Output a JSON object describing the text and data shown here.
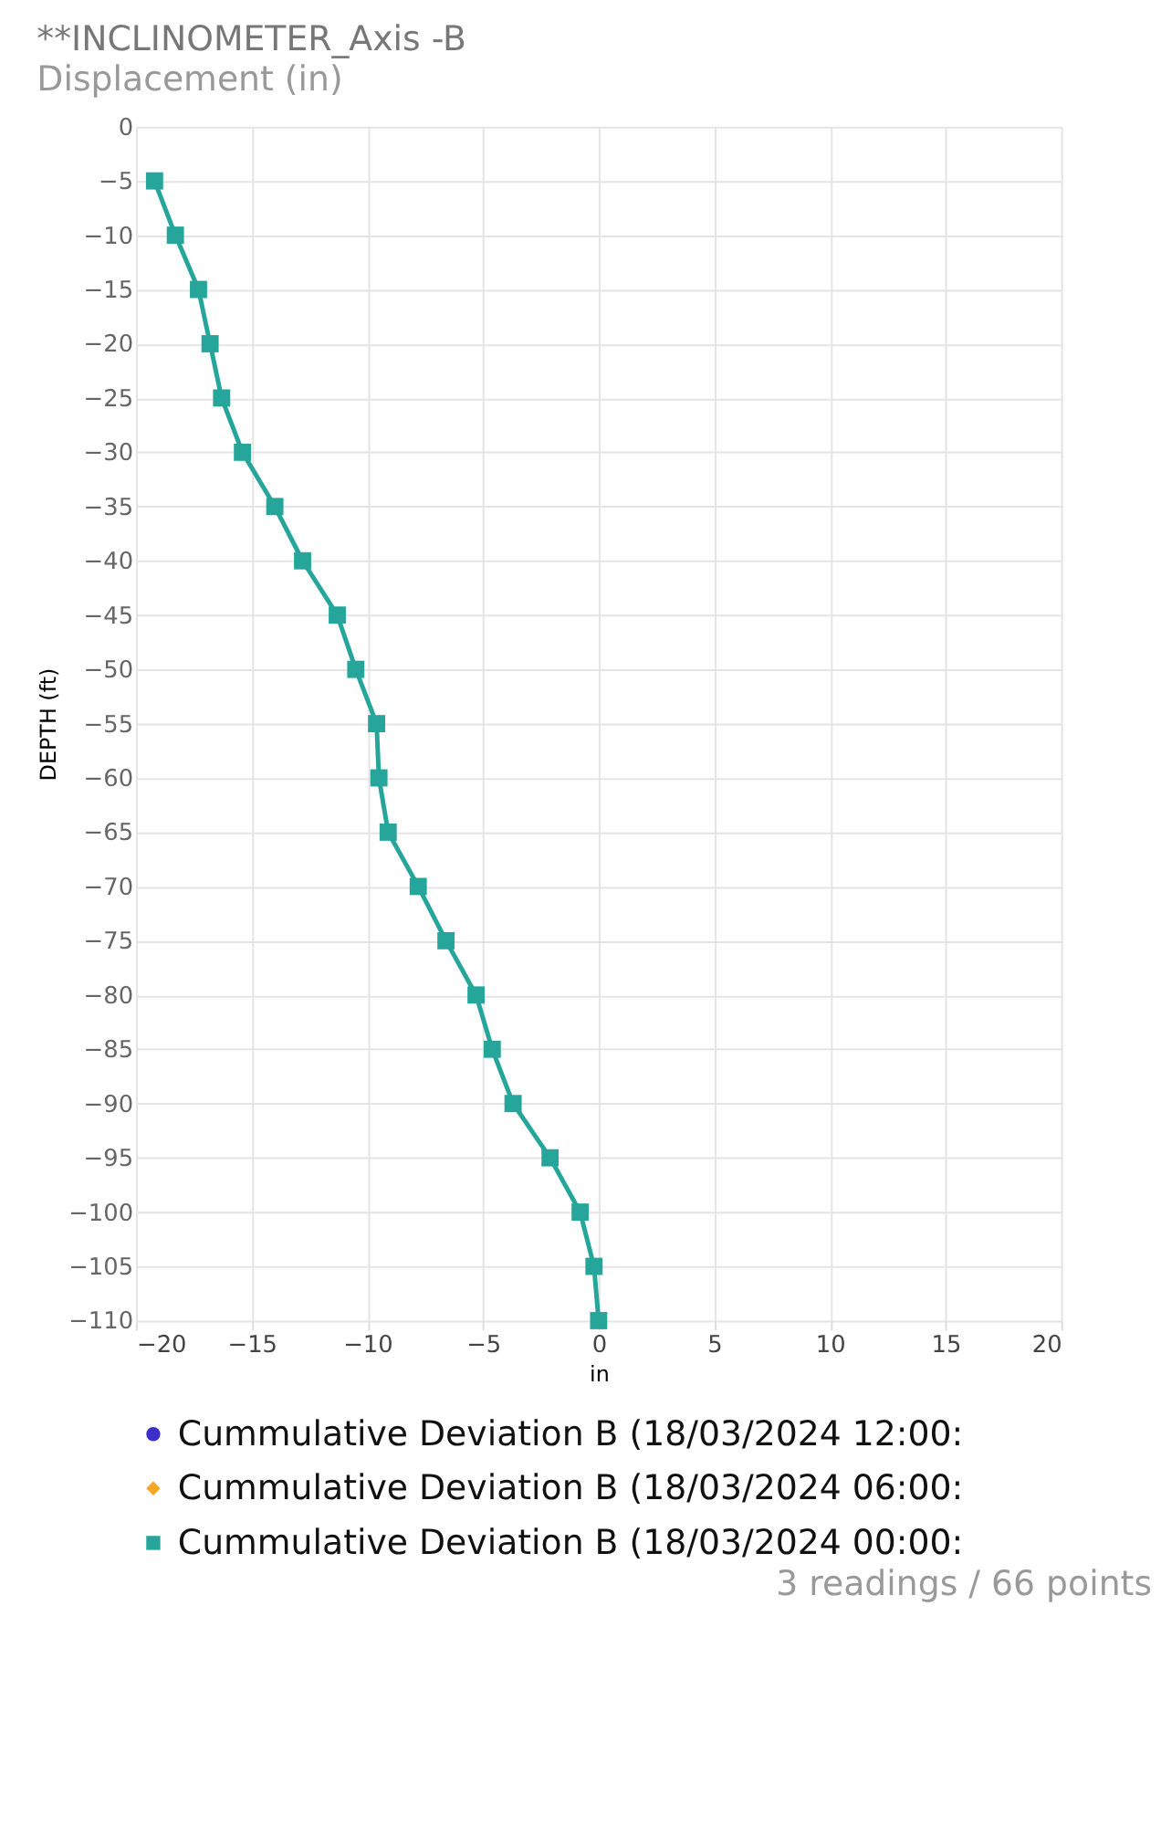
{
  "chart_data": {
    "type": "line",
    "title": "**INCLINOMETER_Axis -B",
    "subtitle": "Displacement (in)",
    "xlabel": "in",
    "ylabel": "DEPTH (ft)",
    "annotations": [
      "3 readings / 66 points"
    ],
    "x": [
      -19.2,
      -18.3,
      -17.3,
      -16.8,
      -16.3,
      -15.4,
      -14.0,
      -12.8,
      -11.3,
      -10.5,
      -9.6,
      -9.5,
      -9.1,
      -7.8,
      -6.6,
      -5.3,
      -4.6,
      -3.7,
      -2.1,
      -0.8,
      -0.2,
      0.0
    ],
    "series": [
      {
        "name": "Cummulative Deviation B (18/03/2024 12:00:",
        "color": "#3b2fc9",
        "marker": "circle",
        "values": [
          null,
          null,
          null,
          null,
          null,
          null,
          null,
          null,
          null,
          null,
          null,
          null,
          null,
          null,
          null,
          null,
          null,
          null,
          null,
          null,
          null,
          null
        ]
      },
      {
        "name": "Cummulative Deviation B (18/03/2024 06:00:",
        "color": "#f5a623",
        "marker": "diamond",
        "values": [
          null,
          null,
          null,
          null,
          null,
          null,
          null,
          null,
          null,
          null,
          null,
          null,
          null,
          null,
          null,
          null,
          null,
          null,
          null,
          null,
          null,
          null
        ]
      },
      {
        "name": "Cummulative Deviation B (18/03/2024 00:00:",
        "color": "#26a69a",
        "marker": "square",
        "values": [
          -5,
          -10,
          -15,
          -20,
          -25,
          -30,
          -35,
          -40,
          -45,
          -50,
          -55,
          -60,
          -65,
          -70,
          -75,
          -80,
          -85,
          -90,
          -95,
          -100,
          -105,
          -110
        ]
      }
    ],
    "xlim": [
      -20,
      20
    ],
    "xticks": [
      -20,
      -15,
      -10,
      -5,
      0,
      5,
      10,
      15,
      20
    ],
    "ylim": [
      -110,
      0
    ],
    "yticks": [
      0,
      -5,
      -10,
      -15,
      -20,
      -25,
      -30,
      -35,
      -40,
      -45,
      -50,
      -55,
      -60,
      -65,
      -70,
      -75,
      -80,
      -85,
      -90,
      -95,
      -100,
      -105,
      -110
    ],
    "grid": true,
    "legend": "bottom",
    "line_style": "solid"
  }
}
